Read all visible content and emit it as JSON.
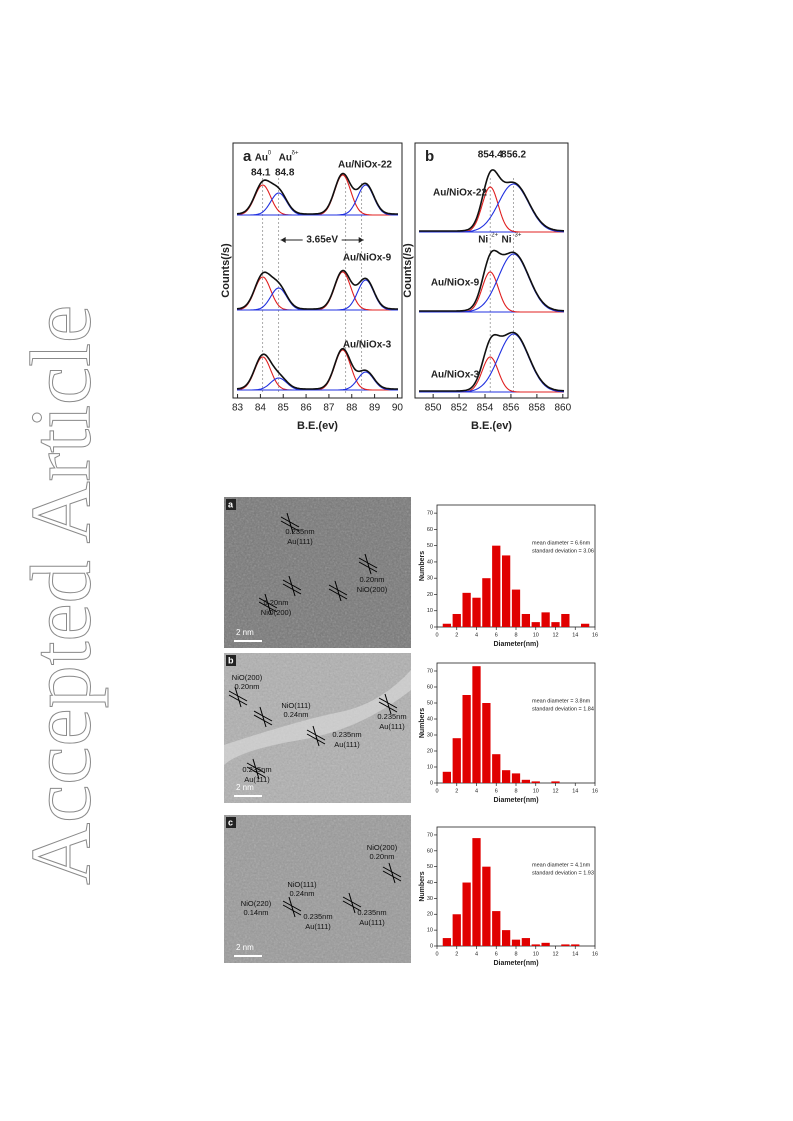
{
  "watermark": "Accepted Article",
  "xps": [
    {
      "label": "a",
      "xlabel": "B.E.(ev)",
      "ylabel": "Counts(/s)",
      "xlim": [
        82.8,
        90.2
      ],
      "xticks": [
        83,
        84,
        85,
        86,
        87,
        88,
        89,
        90
      ],
      "peaks": [
        84.1,
        84.8
      ],
      "peak_names": [
        {
          "name": "Au",
          "sup": "0"
        },
        {
          "name": "Au",
          "sup": "δ+"
        }
      ],
      "splitting": "3.65eV",
      "samples": [
        "Au/NiOx-22",
        "Au/NiOx-9",
        "Au/NiOx-3"
      ]
    },
    {
      "label": "b",
      "xlabel": "B.E.(ev)",
      "ylabel": "Counts(/s)",
      "xlim": [
        848.6,
        860.4
      ],
      "xticks": [
        850,
        852,
        854,
        856,
        858,
        860
      ],
      "peaks": [
        854.4,
        856.2
      ],
      "peak_names": [
        {
          "name": "Ni",
          "sup": "2+"
        },
        {
          "name": "Ni",
          "sup": "3+"
        }
      ],
      "samples": [
        "Au/NiOx-22",
        "Au/NiOx-9",
        "Au/NiOx-3"
      ]
    }
  ],
  "tem": [
    {
      "label": "a",
      "scale": "2 nm",
      "annotations": [
        "0.235nm",
        "Au(111)",
        "0.20nm",
        "NiO(200)",
        "0.20nm",
        "NiO(200)"
      ]
    },
    {
      "label": "b",
      "scale": "2 nm",
      "annotations": [
        "NiO(200)",
        "0.20nm",
        "NiO(111)",
        "0.24nm",
        "0.235nm",
        "Au(111)",
        "0.235nm",
        "Au(111)",
        "0.235nm",
        "Au(111)"
      ]
    },
    {
      "label": "c",
      "scale": "2 nm",
      "annotations": [
        "NiO(200)",
        "0.20nm",
        "NiO(111)",
        "0.24nm",
        "NiO(220)",
        "0.14nm",
        "0.235nm",
        "Au(111)",
        "0.235nm",
        "Au(111)"
      ]
    }
  ],
  "histograms": [
    {
      "type": "histogram",
      "xlabel": "Diameter(nm)",
      "ylabel": "Numbers",
      "color": "#e00000",
      "stats": [
        "mean diameter = 6.6nm",
        "standard deviation = 3.06"
      ],
      "bins": [
        0.5,
        1.5,
        2.5,
        3.5,
        4.5,
        5.5,
        6.5,
        7.5,
        8.5,
        9.5,
        10.5,
        11.5,
        12.5,
        13.5,
        14.5,
        15.5
      ],
      "values": [
        2,
        8,
        21,
        18,
        30,
        50,
        44,
        23,
        8,
        3,
        9,
        3,
        8,
        0,
        2
      ],
      "xlim": [
        0,
        16
      ],
      "xticks": [
        0,
        2,
        4,
        6,
        8,
        10,
        12,
        14,
        16
      ],
      "ylim": [
        0,
        75
      ],
      "yticks": [
        0,
        10,
        20,
        30,
        40,
        50,
        60,
        70
      ]
    },
    {
      "type": "histogram",
      "xlabel": "Diameter(nm)",
      "ylabel": "Numbers",
      "color": "#e00000",
      "stats": [
        "mean diameter = 3.8nm",
        "standard deviation = 1.84"
      ],
      "bins": [
        0.5,
        1.5,
        2.5,
        3.5,
        4.5,
        5.5,
        6.5,
        7.5,
        8.5,
        9.5,
        10.5,
        11.5,
        12.5,
        13.5,
        14.5,
        15.5
      ],
      "values": [
        7,
        28,
        55,
        73,
        50,
        18,
        8,
        6,
        2,
        1,
        0,
        1,
        0,
        0,
        0
      ],
      "xlim": [
        0,
        16
      ],
      "xticks": [
        0,
        2,
        4,
        6,
        8,
        10,
        12,
        14,
        16
      ],
      "ylim": [
        0,
        75
      ],
      "yticks": [
        0,
        10,
        20,
        30,
        40,
        50,
        60,
        70
      ]
    },
    {
      "type": "histogram",
      "xlabel": "Diameter(nm)",
      "ylabel": "Numbers",
      "color": "#e00000",
      "stats": [
        "mean diameter = 4.1nm",
        "standard deviation = 1.93"
      ],
      "bins": [
        0.5,
        1.5,
        2.5,
        3.5,
        4.5,
        5.5,
        6.5,
        7.5,
        8.5,
        9.5,
        10.5,
        11.5,
        12.5,
        13.5,
        14.5,
        15.5
      ],
      "values": [
        5,
        20,
        40,
        68,
        50,
        22,
        10,
        4,
        5,
        1,
        2,
        0,
        1,
        1,
        0
      ],
      "xlim": [
        0,
        16
      ],
      "xticks": [
        0,
        2,
        4,
        6,
        8,
        10,
        12,
        14,
        16
      ],
      "ylim": [
        0,
        75
      ],
      "yticks": [
        0,
        10,
        20,
        30,
        40,
        50,
        60,
        70
      ]
    }
  ]
}
